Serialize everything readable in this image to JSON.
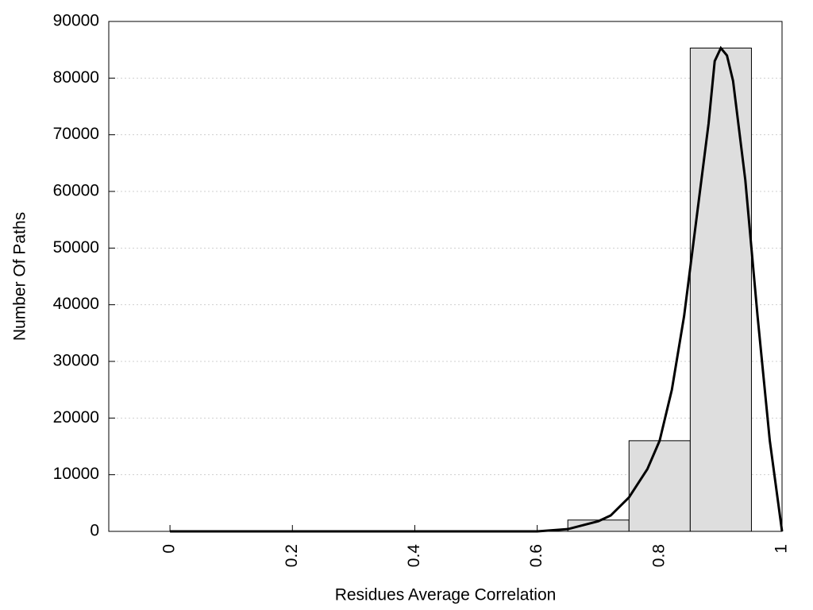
{
  "chart_data": {
    "type": "histogram",
    "x_label": "Residues Average Correlation",
    "y_label": "Number Of Paths",
    "bins": [
      0.65,
      0.75,
      0.85,
      0.95
    ],
    "counts": [
      2000,
      16000,
      85300
    ],
    "color": "#dedede",
    "curve": {
      "x": [
        0,
        0.6,
        0.65,
        0.7,
        0.72,
        0.75,
        0.78,
        0.8,
        0.82,
        0.84,
        0.86,
        0.88,
        0.89,
        0.9,
        0.91,
        0.92,
        0.94,
        0.96,
        0.98,
        1.0
      ],
      "values": [
        0,
        0,
        400,
        1800,
        2800,
        6000,
        11000,
        16000,
        25000,
        38000,
        55000,
        72000,
        83000,
        85300,
        84000,
        79500,
        62000,
        38000,
        16000,
        0
      ],
      "color": "#000000"
    },
    "xlim": [
      -0.1,
      1
    ],
    "ylim": [
      0,
      90000
    ],
    "xticks": [
      0,
      0.2,
      0.4,
      0.6,
      0.8,
      1
    ],
    "yticks": [
      0,
      10000,
      20000,
      30000,
      40000,
      50000,
      60000,
      70000,
      80000,
      90000
    ],
    "grid": true
  }
}
